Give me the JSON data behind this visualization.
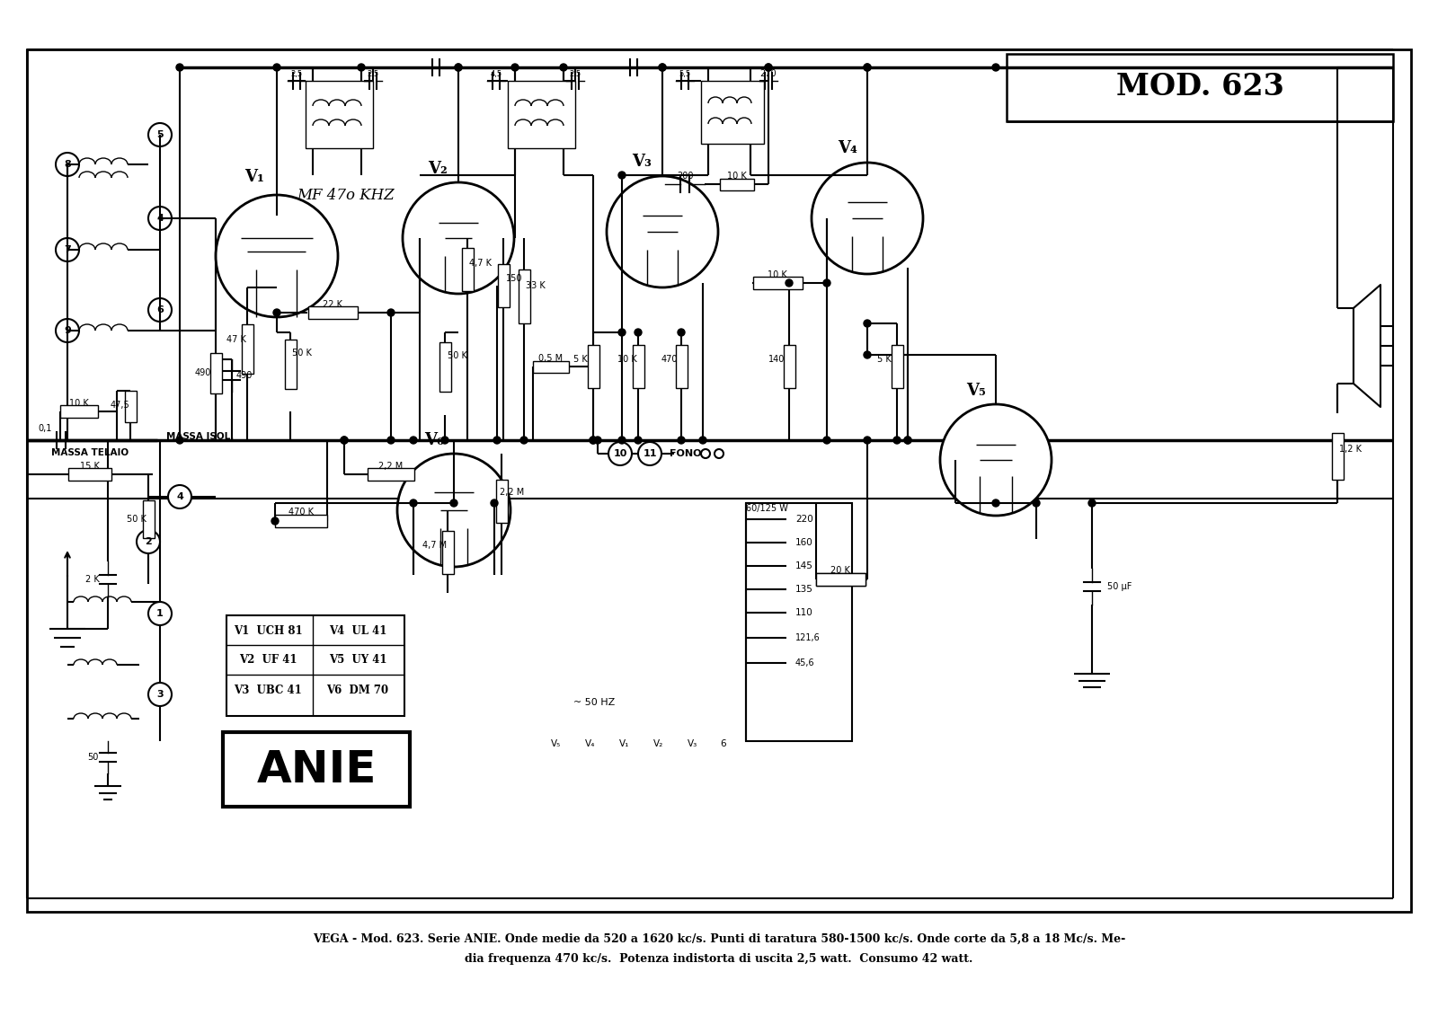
{
  "title": "MOD. 623",
  "caption_line1": "VEGA - Mod. 623. Serie ANIE. Onde medie da 520 a 1620 kc/s. Punti di taratura 580-1500 kc/s. Onde corte da 5,8 a 18 Mc/s. Me-",
  "caption_line2": "dia frequenza 470 kc/s.  Potenza indistorta di uscita 2,5 watt.  Consumo 42 watt.",
  "bg_color": "#ffffff",
  "line_color": "#000000",
  "label_mf": "MF 47o KHZ",
  "anie_label": "ANIE",
  "component_table": [
    [
      "V1  UCH 81",
      "V4  UL 41"
    ],
    [
      "V2  UF 41",
      "V5  UY 41"
    ],
    [
      "V3  UBC 41",
      "V6  DM 70"
    ]
  ],
  "fig_width": 16.0,
  "fig_height": 11.31,
  "dpi": 100
}
